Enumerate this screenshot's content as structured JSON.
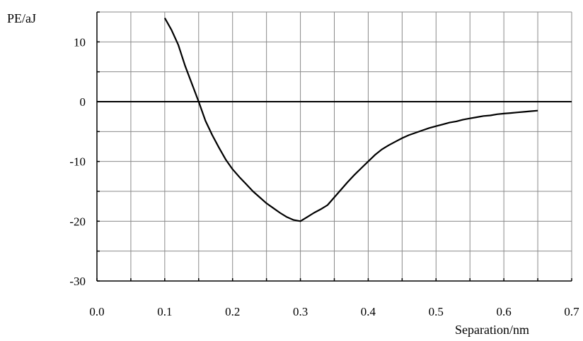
{
  "chart_data": {
    "type": "line",
    "title": "",
    "xlabel": "Separation/nm",
    "ylabel": "PE/aJ",
    "xlim": [
      0.0,
      0.7
    ],
    "ylim": [
      -30,
      15
    ],
    "grid": true,
    "x_ticks": [
      0.0,
      0.1,
      0.2,
      0.3,
      0.4,
      0.5,
      0.6,
      0.7
    ],
    "x_tick_labels": [
      "0.0",
      "0.1",
      "0.2",
      "0.3",
      "0.4",
      "0.5",
      "0.6",
      "0.7"
    ],
    "y_ticks": [
      -30,
      -20,
      -10,
      0,
      10
    ],
    "y_tick_labels": [
      "-30",
      "-20",
      "-10",
      "0",
      "10"
    ],
    "series": [
      {
        "x": [
          0.1,
          0.11,
          0.12,
          0.13,
          0.14,
          0.15,
          0.16,
          0.17,
          0.18,
          0.19,
          0.2,
          0.21,
          0.22,
          0.23,
          0.24,
          0.25,
          0.26,
          0.27,
          0.28,
          0.29,
          0.3,
          0.31,
          0.32,
          0.33,
          0.34,
          0.35,
          0.36,
          0.37,
          0.38,
          0.39,
          0.4,
          0.41,
          0.42,
          0.43,
          0.44,
          0.45,
          0.46,
          0.47,
          0.48,
          0.49,
          0.5,
          0.51,
          0.52,
          0.53,
          0.54,
          0.55,
          0.56,
          0.57,
          0.58,
          0.59,
          0.6,
          0.61,
          0.62,
          0.63,
          0.64,
          0.65
        ],
        "y": [
          14.0,
          12.0,
          9.5,
          6.0,
          3.0,
          0.0,
          -3.2,
          -5.6,
          -7.7,
          -9.7,
          -11.3,
          -12.6,
          -13.8,
          -15.0,
          -16.0,
          -17.0,
          -17.8,
          -18.6,
          -19.3,
          -19.8,
          -20.0,
          -19.3,
          -18.6,
          -18.0,
          -17.3,
          -16.0,
          -14.7,
          -13.4,
          -12.2,
          -11.1,
          -10.0,
          -8.9,
          -8.0,
          -7.3,
          -6.7,
          -6.1,
          -5.6,
          -5.2,
          -4.8,
          -4.4,
          -4.1,
          -3.8,
          -3.5,
          -3.3,
          -3.0,
          -2.8,
          -2.6,
          -2.4,
          -2.3,
          -2.1,
          -2.0,
          -1.9,
          -1.8,
          -1.7,
          -1.6,
          -1.5
        ]
      }
    ]
  }
}
